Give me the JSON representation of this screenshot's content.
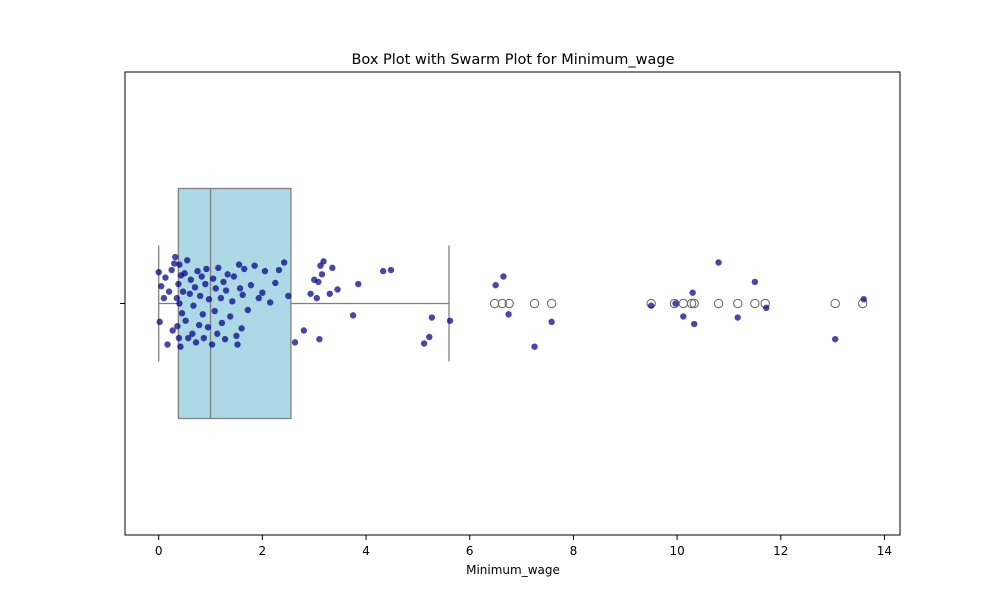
{
  "chart_data": {
    "type": "box",
    "title": "Box Plot with Swarm Plot for Minimum_wage",
    "xlabel": "Minimum_wage",
    "ylabel": "",
    "xlim": [
      -0.65,
      14.3
    ],
    "x_ticks": [
      0,
      2,
      4,
      6,
      8,
      10,
      12,
      14
    ],
    "x_tick_labels": [
      "0",
      "2",
      "4",
      "6",
      "8",
      "10",
      "12",
      "14"
    ],
    "grid": false,
    "legend": "none",
    "colors": {
      "box_fill": "#add8e6",
      "box_edge": "#808080",
      "point": "#00008b"
    },
    "box": {
      "whisker_low": 0,
      "q1": 0.38,
      "median": 1.0,
      "q3": 2.55,
      "whisker_high": 5.6
    },
    "outliers": [
      6.48,
      6.63,
      6.76,
      7.25,
      7.58,
      9.5,
      9.95,
      10.12,
      10.28,
      10.33,
      10.8,
      11.17,
      11.5,
      11.7,
      13.05,
      13.58
    ],
    "swarm_points": [
      [
        0.0,
        0.29
      ],
      [
        0.02,
        -0.17
      ],
      [
        0.05,
        0.16
      ],
      [
        0.1,
        0.05
      ],
      [
        0.13,
        0.24
      ],
      [
        0.17,
        -0.38
      ],
      [
        0.2,
        0.11
      ],
      [
        0.25,
        0.31
      ],
      [
        0.27,
        -0.25
      ],
      [
        0.3,
        0.37
      ],
      [
        0.32,
        0.43
      ],
      [
        0.35,
        0.05
      ],
      [
        0.36,
        -0.21
      ],
      [
        0.38,
        0.18
      ],
      [
        0.39,
        -0.32
      ],
      [
        0.4,
        0.36
      ],
      [
        0.4,
        0.0
      ],
      [
        0.42,
        -0.4
      ],
      [
        0.43,
        0.26
      ],
      [
        0.45,
        -0.09
      ],
      [
        0.47,
        0.11
      ],
      [
        0.5,
        0.28
      ],
      [
        0.52,
        -0.16
      ],
      [
        0.55,
        0.4
      ],
      [
        0.57,
        -0.32
      ],
      [
        0.6,
        0.09
      ],
      [
        0.62,
        0.22
      ],
      [
        0.65,
        -0.28
      ],
      [
        0.67,
        -0.02
      ],
      [
        0.7,
        0.15
      ],
      [
        0.72,
        -0.36
      ],
      [
        0.75,
        0.3
      ],
      [
        0.78,
        -0.2
      ],
      [
        0.8,
        0.07
      ],
      [
        0.83,
        0.25
      ],
      [
        0.85,
        -0.1
      ],
      [
        0.87,
        -0.32
      ],
      [
        0.9,
        0.18
      ],
      [
        0.92,
        0.32
      ],
      [
        0.95,
        -0.22
      ],
      [
        0.97,
        0.04
      ],
      [
        1.03,
        -0.38
      ],
      [
        1.05,
        0.23
      ],
      [
        1.08,
        -0.07
      ],
      [
        1.1,
        0.14
      ],
      [
        1.13,
        -0.28
      ],
      [
        1.15,
        0.33
      ],
      [
        1.2,
        0.05
      ],
      [
        1.22,
        -0.18
      ],
      [
        1.25,
        0.2
      ],
      [
        1.28,
        -0.33
      ],
      [
        1.3,
        0.12
      ],
      [
        1.33,
        0.27
      ],
      [
        1.38,
        -0.12
      ],
      [
        1.42,
        0.02
      ],
      [
        1.45,
        0.25
      ],
      [
        1.5,
        -0.3
      ],
      [
        1.52,
        -0.38
      ],
      [
        1.55,
        0.36
      ],
      [
        1.57,
        0.14
      ],
      [
        1.6,
        -0.23
      ],
      [
        1.62,
        0.08
      ],
      [
        1.65,
        0.32
      ],
      [
        1.72,
        -0.06
      ],
      [
        1.78,
        0.17
      ],
      [
        1.85,
        0.35
      ],
      [
        1.93,
        0.05
      ],
      [
        2.0,
        0.1
      ],
      [
        2.05,
        0.3
      ],
      [
        2.15,
        0.01
      ],
      [
        2.25,
        0.19
      ],
      [
        2.32,
        0.31
      ],
      [
        2.42,
        0.38
      ],
      [
        2.5,
        0.07
      ],
      [
        2.63,
        -0.36
      ],
      [
        2.8,
        -0.25
      ],
      [
        2.93,
        0.09
      ],
      [
        3.0,
        0.22
      ],
      [
        3.05,
        0.05
      ],
      [
        3.08,
        0.2
      ],
      [
        3.1,
        -0.33
      ],
      [
        3.12,
        0.35
      ],
      [
        3.15,
        0.27
      ],
      [
        3.18,
        0.39
      ],
      [
        3.3,
        0.09
      ],
      [
        3.35,
        0.33
      ],
      [
        3.45,
        0.13
      ],
      [
        3.75,
        -0.11
      ],
      [
        3.85,
        0.18
      ],
      [
        4.33,
        0.3
      ],
      [
        4.48,
        0.31
      ],
      [
        5.12,
        -0.37
      ],
      [
        5.22,
        -0.31
      ],
      [
        5.27,
        -0.13
      ],
      [
        5.62,
        -0.16
      ],
      [
        6.5,
        0.17
      ],
      [
        6.65,
        0.25
      ],
      [
        6.75,
        -0.1
      ],
      [
        7.25,
        -0.4
      ],
      [
        7.58,
        -0.17
      ],
      [
        9.5,
        -0.02
      ],
      [
        9.97,
        0.0
      ],
      [
        10.12,
        -0.12
      ],
      [
        10.3,
        0.1
      ],
      [
        10.33,
        -0.19
      ],
      [
        10.8,
        0.38
      ],
      [
        11.17,
        -0.13
      ],
      [
        11.5,
        0.2
      ],
      [
        11.72,
        -0.04
      ],
      [
        13.05,
        -0.33
      ],
      [
        13.6,
        0.04
      ]
    ]
  }
}
